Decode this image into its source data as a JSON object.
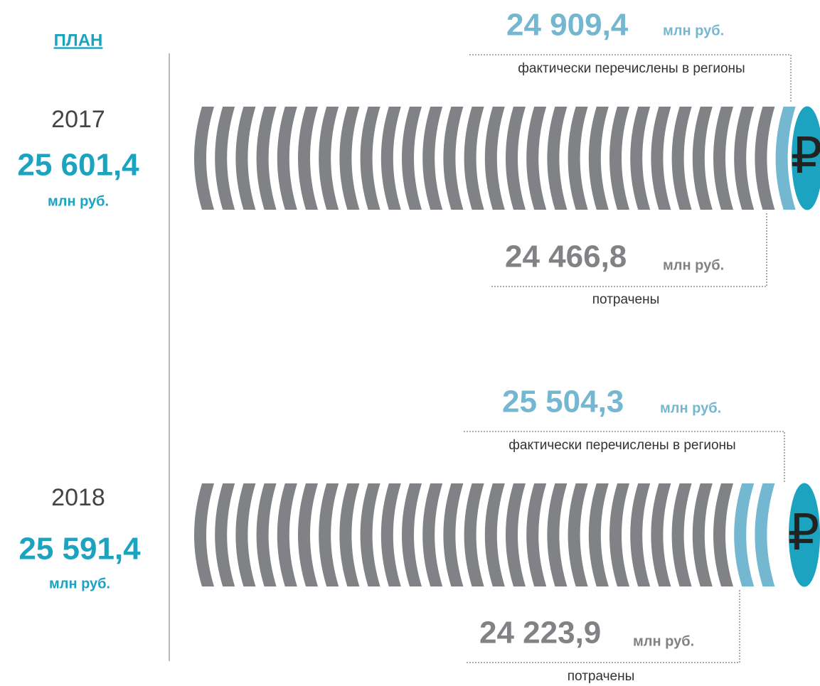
{
  "header": {
    "title": "ПЛАН"
  },
  "years": [
    {
      "year": "2017",
      "plan": "25 601,4",
      "plan_unit": "млн руб.",
      "icon": "₽",
      "transferred": "24 909,4",
      "transferred_unit": "млн руб.",
      "transferred_label": "фактически перечислены в регионы",
      "spent": "24 466,8",
      "spent_unit": "млн руб.",
      "spent_label": "потрачены"
    },
    {
      "year": "2018",
      "plan": "25 591,4",
      "plan_unit": "млн руб.",
      "icon": "₽",
      "transferred": "25 504,3",
      "transferred_unit": "млн руб.",
      "transferred_label": "фактически перечислены в регионы",
      "spent": "24 223,9",
      "spent_unit": "млн руб.",
      "spent_label": "потрачены"
    }
  ]
}
